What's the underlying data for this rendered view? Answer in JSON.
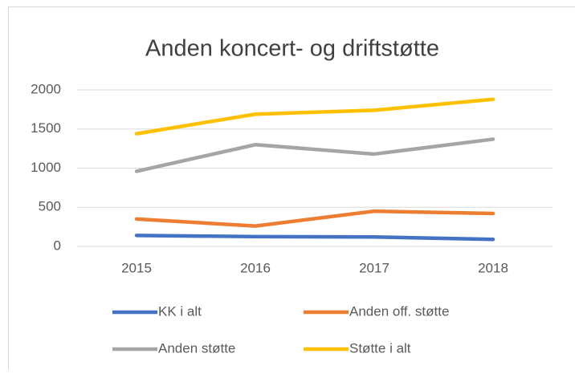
{
  "chart_data": {
    "type": "line",
    "title": "Anden koncert- og driftstøtte",
    "categories": [
      "2015",
      "2016",
      "2017",
      "2018"
    ],
    "series": [
      {
        "name": "KK i alt",
        "color": "#4472c4",
        "values": [
          140,
          125,
          120,
          90
        ]
      },
      {
        "name": "Anden off. støtte",
        "color": "#ed7d31",
        "values": [
          350,
          260,
          450,
          420
        ]
      },
      {
        "name": "Anden støtte",
        "color": "#a5a5a5",
        "values": [
          960,
          1300,
          1180,
          1370
        ]
      },
      {
        "name": "Støtte i alt",
        "color": "#ffc000",
        "values": [
          1440,
          1690,
          1740,
          1880
        ]
      }
    ],
    "ylim": [
      0,
      2000
    ],
    "yticks": [
      0,
      500,
      1000,
      1500,
      2000
    ],
    "grid": true,
    "legend": "bottom"
  }
}
